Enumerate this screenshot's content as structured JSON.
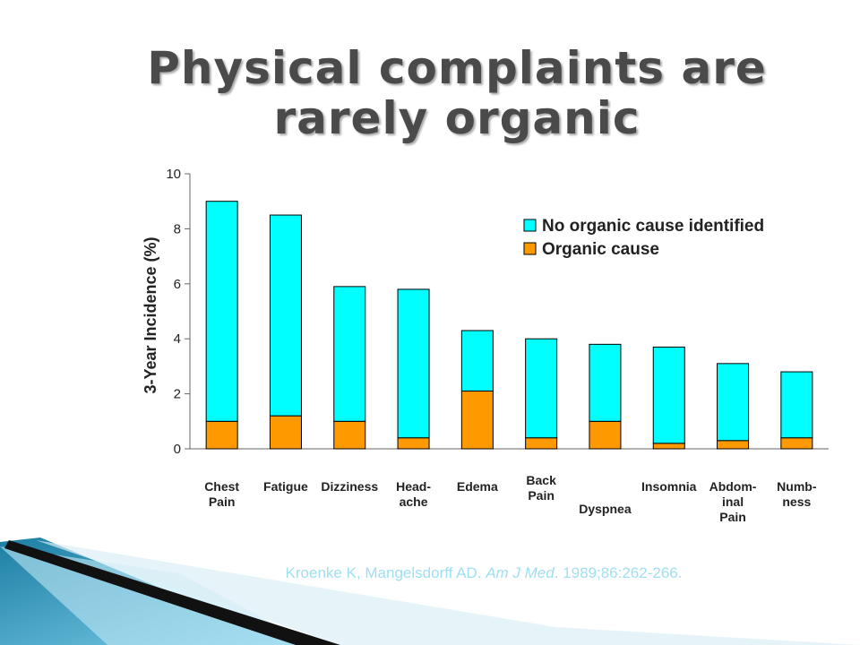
{
  "slide": {
    "title_line1": "Physical complaints are",
    "title_line2": "rarely organic"
  },
  "citation": {
    "prefix": "Kroenke K, Mangelsdorff AD. ",
    "journal": "Am J Med",
    "suffix": ". 1989;86:262-266."
  },
  "chart_data": {
    "type": "bar",
    "stacked": true,
    "ylabel": "3-Year Incidence (%)",
    "ylim": [
      0,
      10
    ],
    "yticks": [
      0,
      2,
      4,
      6,
      8,
      10
    ],
    "categories": [
      "Chest\nPain",
      "Fatigue",
      "Dizziness",
      "Head-\nache",
      "Edema",
      "Back\nPain",
      "Dyspnea",
      "Insomnia",
      "Abdom-\ninal\nPain",
      "Numb-\nness"
    ],
    "series": [
      {
        "name": "Organic cause",
        "color": "#ff9900",
        "values": [
          1.0,
          1.2,
          1.0,
          0.4,
          2.1,
          0.4,
          1.0,
          0.2,
          0.3,
          0.4
        ]
      },
      {
        "name": "No organic cause identified",
        "color": "#00ffff",
        "values": [
          8.0,
          7.3,
          4.9,
          5.4,
          2.2,
          3.6,
          2.8,
          3.5,
          2.8,
          2.4
        ]
      }
    ],
    "legend_position": "top-right",
    "grid": false
  }
}
